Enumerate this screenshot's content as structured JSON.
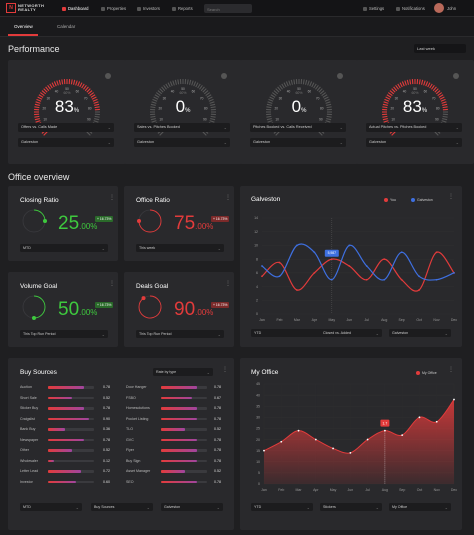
{
  "topbar": {
    "brand_line1": "NETWORTH",
    "brand_line2": "REALTY",
    "nav": [
      "Dashboard",
      "Properties",
      "Investors",
      "Reports"
    ],
    "search_placeholder": "Search",
    "settings": "Settings",
    "notifications": "Notifications",
    "user": "John"
  },
  "tabs": [
    "Overview",
    "Calendar"
  ],
  "performance": {
    "title": "Performance",
    "period": "Last week",
    "gauges": [
      {
        "value": "83",
        "pct": "%",
        "sub": "60%",
        "metric": "Offers vs. Calls Made",
        "location": "Galveston",
        "level": 0.83
      },
      {
        "value": "0",
        "pct": "%",
        "sub": "60%",
        "metric": "Sales vs. Pitches Booked",
        "location": "Galveston",
        "level": 0.0
      },
      {
        "value": "0",
        "pct": "%",
        "sub": "60%",
        "metric": "Pitches Booked vs. Calls Received",
        "location": "Galveston",
        "level": 0.0
      },
      {
        "value": "83",
        "pct": "%",
        "sub": "60%",
        "metric": "Actual Pitches vs. Pitches Booked",
        "location": "Galveston",
        "level": 0.83
      }
    ],
    "gauge_ticks": [
      "0",
      "10",
      "20",
      "30",
      "40",
      "50",
      "60",
      "70",
      "80",
      "90",
      "100"
    ]
  },
  "office": {
    "title": "Office overview",
    "kpis": [
      {
        "title": "Closing Ratio",
        "value": "25",
        "decimals": ".00%",
        "badge": "+ 16.73%",
        "period": "MTD",
        "color": "#3ec93e",
        "level": 0.25
      },
      {
        "title": "Office Ratio",
        "value": "75",
        "decimals": ".00%",
        "badge": "+ 16.73%",
        "period": "This week",
        "color": "#e23b3b",
        "level": 0.75
      },
      {
        "title": "Volume Goal",
        "value": "50",
        "decimals": ".00%",
        "badge": "+ 16.73%",
        "period": "This Top Run Period",
        "color": "#3ec93e",
        "level": 0.5
      },
      {
        "title": "Deals Goal",
        "value": "90",
        "decimals": ".00%",
        "badge": "+ 16.73%",
        "period": "This Top Run Period",
        "color": "#e23b3b",
        "level": 0.9
      }
    ]
  },
  "galveston": {
    "title": "Galveston",
    "legend": [
      "You",
      "Galveston"
    ],
    "tooltip": "5,987",
    "dd_period": "YTD",
    "dd_metric": "Closed vs. Added",
    "dd_location": "Galveston"
  },
  "buy_sources": {
    "title": "Buy Sources",
    "rate_label": "Rate by type",
    "left": [
      {
        "label": "Auction",
        "value": "0.78",
        "fill": 0.78
      },
      {
        "label": "Short Sale",
        "value": "0.52",
        "fill": 0.52
      },
      {
        "label": "Sticker Buy",
        "value": "0.78",
        "fill": 0.78
      },
      {
        "label": "Craigslist",
        "value": "0.90",
        "fill": 0.9
      },
      {
        "label": "Bank Buy",
        "value": "0.36",
        "fill": 0.36
      },
      {
        "label": "Newspaper",
        "value": "0.78",
        "fill": 0.78
      },
      {
        "label": "Other",
        "value": "0.52",
        "fill": 0.52
      },
      {
        "label": "Wholesaler",
        "value": "0.12",
        "fill": 0.12
      },
      {
        "label": "Letter Lead",
        "value": "0.72",
        "fill": 0.72
      },
      {
        "label": "Investor",
        "value": "0.60",
        "fill": 0.6
      }
    ],
    "right": [
      {
        "label": "Door Hanger",
        "value": "0.78",
        "fill": 0.78
      },
      {
        "label": "FSBO",
        "value": "0.67",
        "fill": 0.67
      },
      {
        "label": "Homesolutions",
        "value": "0.78",
        "fill": 0.78
      },
      {
        "label": "Pocket Listing",
        "value": "0.78",
        "fill": 0.78
      },
      {
        "label": "TLO",
        "value": "0.52",
        "fill": 0.52
      },
      {
        "label": "GVC",
        "value": "0.78",
        "fill": 0.78
      },
      {
        "label": "Flyer",
        "value": "0.78",
        "fill": 0.78
      },
      {
        "label": "Buy Sign",
        "value": "0.78",
        "fill": 0.78
      },
      {
        "label": "Asset Manager",
        "value": "0.52",
        "fill": 0.52
      },
      {
        "label": "SEO",
        "value": "0.78",
        "fill": 0.78
      }
    ],
    "dd_period": "MTD",
    "dd_metric": "Buy Sources",
    "dd_location": "Galveston"
  },
  "my_office": {
    "title": "My Office",
    "legend": "My Office",
    "tooltip": "1.7",
    "dd_period": "YTD",
    "dd_metric": "Stickers",
    "dd_location": "My Office"
  },
  "chart_data": [
    {
      "type": "line",
      "title": "Galveston",
      "categories": [
        "Jan",
        "Feb",
        "Mar",
        "Apr",
        "May",
        "Jun",
        "Jul",
        "Aug",
        "Sep",
        "Oct",
        "Nov",
        "Dec"
      ],
      "ylim": [
        0,
        14
      ],
      "yticks": [
        0,
        2,
        4,
        6,
        8,
        10,
        12,
        14
      ],
      "series": [
        {
          "name": "You",
          "color": "#e23b3b",
          "values": [
            5.5,
            7.5,
            3.5,
            6,
            8,
            7,
            5,
            8,
            5,
            3.5,
            9,
            6
          ]
        },
        {
          "name": "Galveston",
          "color": "#3e6fe0",
          "values": [
            7,
            5.5,
            10,
            9,
            5,
            10,
            7,
            5,
            9,
            5.5,
            5,
            6
          ]
        }
      ]
    },
    {
      "type": "area",
      "title": "My Office",
      "categories": [
        "Jan",
        "Feb",
        "Mar",
        "Apr",
        "May",
        "Jun",
        "Jul",
        "Aug",
        "Sep",
        "Oct",
        "Nov",
        "Dec"
      ],
      "ylim": [
        0,
        45
      ],
      "yticks": [
        0,
        5,
        10,
        15,
        20,
        25,
        30,
        35,
        40,
        45
      ],
      "series": [
        {
          "name": "My Office",
          "color": "#e23b3b",
          "values": [
            15,
            19,
            24,
            20,
            16,
            14,
            20,
            24,
            22,
            30,
            28,
            38
          ]
        }
      ]
    }
  ]
}
